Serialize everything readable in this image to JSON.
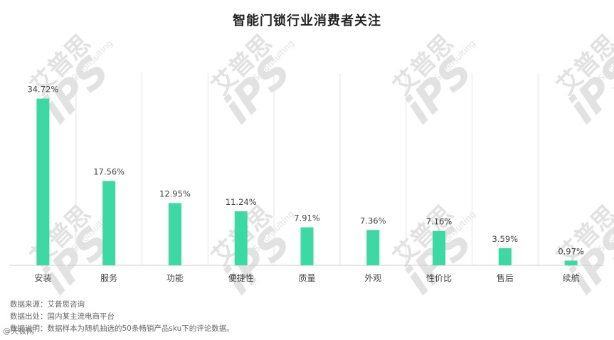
{
  "chart_data": {
    "type": "bar",
    "title": "智能门锁行业消费者关注",
    "categories": [
      "安装",
      "服务",
      "功能",
      "便捷性",
      "质量",
      "外观",
      "性价比",
      "售后",
      "续航"
    ],
    "values": [
      34.72,
      17.56,
      12.95,
      11.24,
      7.91,
      7.36,
      7.16,
      3.59,
      0.97
    ],
    "data_labels": [
      "34.72%",
      "17.56%",
      "12.95%",
      "11.24%",
      "7.91%",
      "7.36%",
      "7.16%",
      "3.59%",
      "0.97%"
    ],
    "xlabel": "",
    "ylabel": "",
    "ylim": [
      0,
      40
    ],
    "grid": "vertical separators",
    "legend": "none",
    "bar_color": "#3dd9a4"
  },
  "notes": {
    "source": "数据来源：艾普思咨询",
    "origin": "数据出处：国内某主流电商平台",
    "description": "数据说明：数据样本为随机抽选的50条畅销产品sku下的评论数据。"
  },
  "watermark": {
    "cn": "艾普思",
    "logo": "iPS",
    "en": "IPS Consulting"
  },
  "footer_tag": "@天极网"
}
